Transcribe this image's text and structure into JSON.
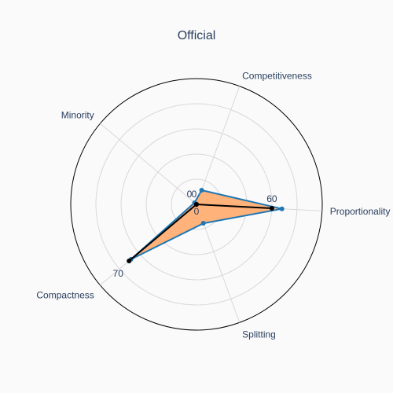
{
  "chart_data": {
    "type": "radar",
    "title": "Official",
    "axes": [
      "Proportionality",
      "Competitiveness",
      "Minority",
      "Compactness",
      "Splitting"
    ],
    "series": [
      {
        "values": [
          68,
          12,
          2,
          68,
          16
        ],
        "color": "#1f77b4",
        "fill": "#ffb27a",
        "marker": "dot"
      },
      {
        "values": [
          60,
          0,
          0,
          70,
          0
        ],
        "color": "#000000",
        "fill": "none",
        "marker": "dot"
      }
    ],
    "rlim": [
      0,
      100
    ],
    "tick_labels": [
      "60",
      "0",
      "0",
      "0",
      "70"
    ],
    "grid": true
  }
}
